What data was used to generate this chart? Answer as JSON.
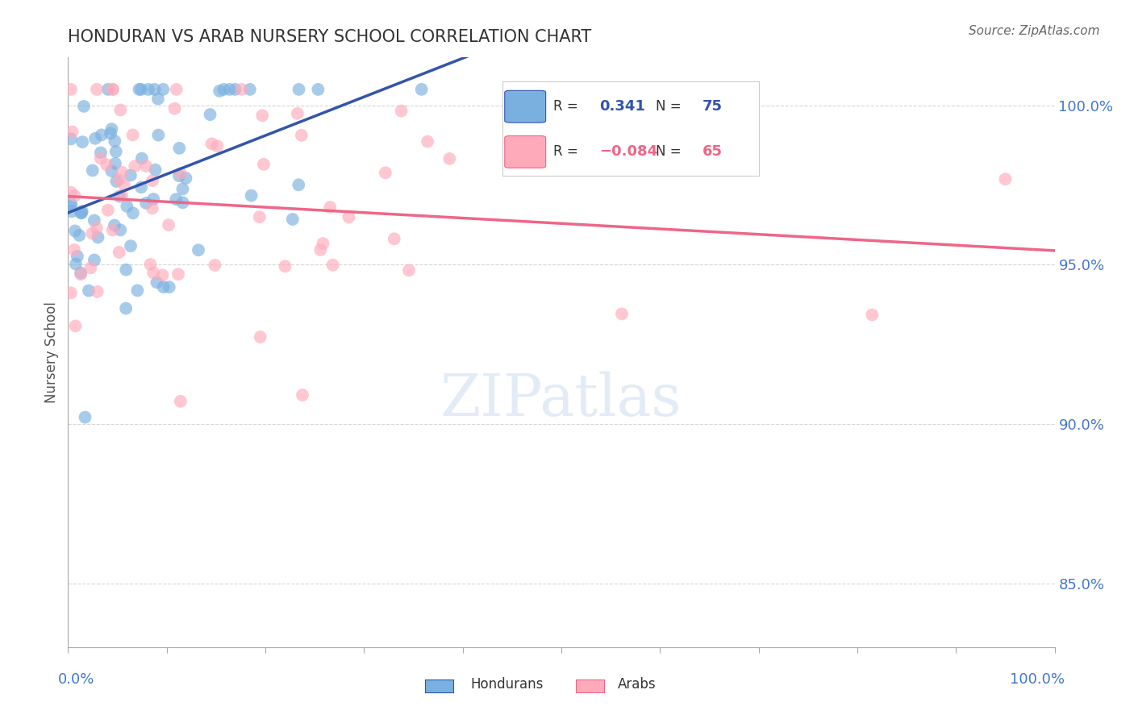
{
  "title": "HONDURAN VS ARAB NURSERY SCHOOL CORRELATION CHART",
  "source_text": "Source: ZipAtlas.com",
  "ylabel": "Nursery School",
  "ylim": [
    83.0,
    101.5
  ],
  "xlim": [
    0.0,
    100.0
  ],
  "yticks": [
    85.0,
    90.0,
    95.0,
    100.0
  ],
  "ytick_labels": [
    "85.0%",
    "90.0%",
    "95.0%",
    "100.0%"
  ],
  "honduran_color": "#7ab0e0",
  "arab_color": "#ffaabb",
  "honduran_line_color": "#3355aa",
  "arab_line_color": "#ee6688",
  "background_color": "#ffffff",
  "grid_color": "#cccccc",
  "title_color": "#333333",
  "axis_label_color": "#4477cc",
  "R_hon": 0.341,
  "N_hon": 75,
  "R_arab": -0.084,
  "N_arab": 65,
  "watermark": "ZIPatlas",
  "legend_R_label": "R = ",
  "legend_N_label": "N = ",
  "hon_R_str": "0.341",
  "arab_R_str": "−0.084",
  "hon_N_str": "75",
  "arab_N_str": "65",
  "bottom_legend_hon": "Hondurans",
  "bottom_legend_arab": "Arabs"
}
